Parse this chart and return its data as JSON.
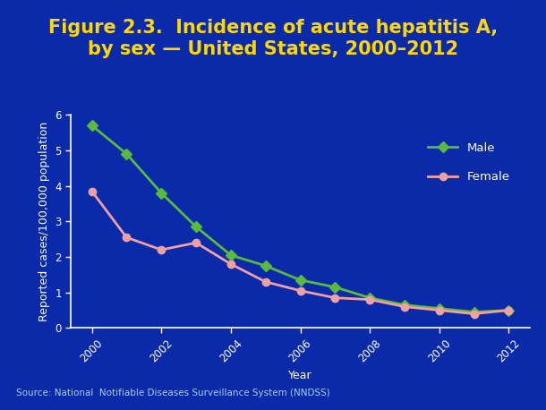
{
  "title_line1": "Figure 2.3.  Incidence of acute hepatitis A,",
  "title_line2": "by sex — United States, 2000–2012",
  "years": [
    2000,
    2001,
    2002,
    2003,
    2004,
    2005,
    2006,
    2007,
    2008,
    2009,
    2010,
    2011,
    2012
  ],
  "male": [
    5.7,
    4.9,
    3.8,
    2.85,
    2.05,
    1.75,
    1.35,
    1.15,
    0.85,
    0.65,
    0.55,
    0.45,
    0.5
  ],
  "female": [
    3.85,
    2.55,
    2.2,
    2.4,
    1.8,
    1.3,
    1.05,
    0.85,
    0.8,
    0.6,
    0.5,
    0.4,
    0.5
  ],
  "male_color": "#5aba3c",
  "female_color": "#f0a0a0",
  "outer_bg_color": "#1a3a8a",
  "inner_bg_color": "#0a2aaa",
  "plot_bg_color": "#0a2aaa",
  "title_color": "#ffd700",
  "axis_color": "#ffffff",
  "tick_color": "#ffffff",
  "grid_color": "#ffffff",
  "legend_text_color": "#ffffff",
  "source_color": "#aaccee",
  "ylabel": "Reported cases/100,000 population",
  "xlabel": "Year",
  "source_text": "Source: National  Notifiable Diseases Surveillance System (NNDSS)",
  "ylim": [
    0,
    6
  ],
  "yticks": [
    0,
    1,
    2,
    3,
    4,
    5,
    6
  ],
  "xticks": [
    2000,
    2002,
    2004,
    2006,
    2008,
    2010,
    2012
  ],
  "title_fontsize": 15,
  "axis_label_fontsize": 9,
  "tick_fontsize": 8.5,
  "legend_fontsize": 9.5,
  "source_fontsize": 7.5,
  "line_width": 2.0,
  "marker_size": 6
}
